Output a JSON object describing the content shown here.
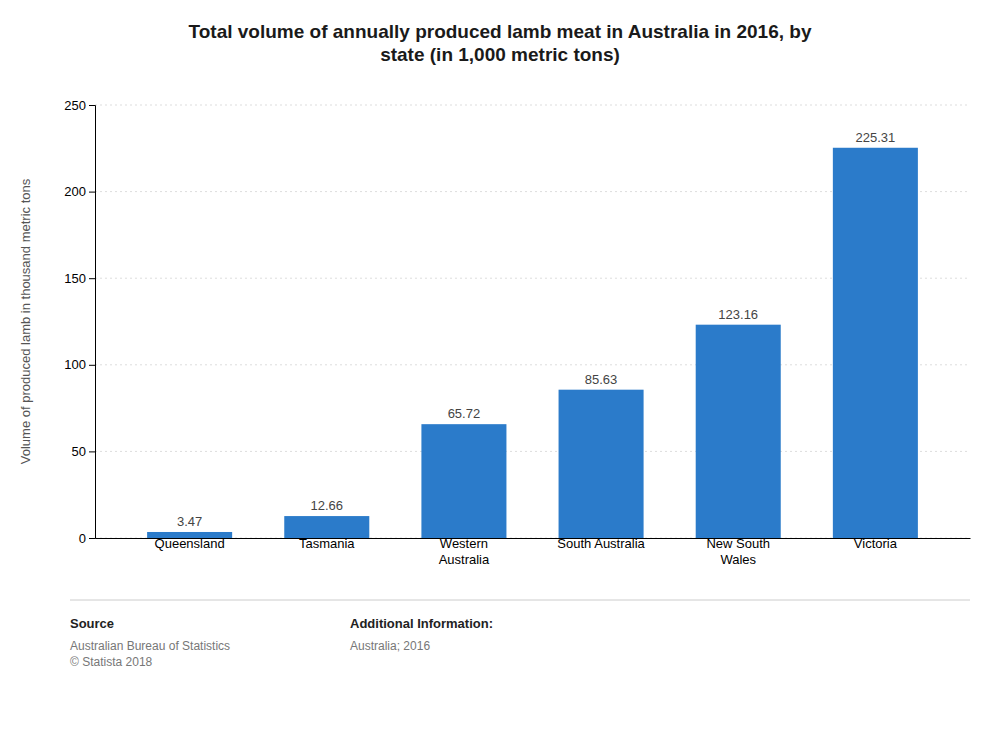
{
  "chart_data": {
    "type": "bar",
    "title": "Total volume of annually produced lamb meat in Australia in 2016, by\nstate (in 1,000 metric tons)",
    "ylabel": "Volume of produced lamb in thousand metric tons",
    "categories": [
      "Queensland",
      "Tasmania",
      "Western\nAustralia",
      "South Australia",
      "New South\nWales",
      "Victoria"
    ],
    "values": [
      3.47,
      12.66,
      65.72,
      85.63,
      123.16,
      225.31
    ],
    "color": "#2b7bca",
    "ylim": [
      0,
      250
    ],
    "yticks": [
      0,
      50,
      100,
      150,
      200,
      250
    ],
    "grid": true,
    "data_labels": true,
    "annotations": [
      "Source",
      "Australian Bureau of Statistics\n© Statista 2018",
      "Additional Information:",
      "Australia; 2016"
    ]
  }
}
